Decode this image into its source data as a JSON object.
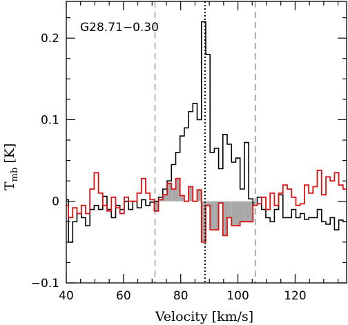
{
  "chart_data": {
    "type": "line",
    "title": "G28.71−0.30",
    "xlabel": "Velocity [km/s]",
    "ylabel_main": "T",
    "ylabel_sub": "mb",
    "ylabel_unit": "[K]",
    "xlim": [
      40,
      138
    ],
    "ylim": [
      -0.1,
      0.245
    ],
    "x_ticks": [
      40,
      60,
      80,
      100,
      120
    ],
    "x_tick_labels": [
      "40",
      "60",
      "80",
      "100",
      "120"
    ],
    "y_ticks": [
      -0.1,
      0,
      0.1,
      0.2
    ],
    "y_tick_labels": [
      "−0.1",
      "0",
      "0.1",
      "0.2"
    ],
    "vlines_dashed": [
      71,
      106
    ],
    "vline_dotted": 88.5,
    "integration_range": [
      71,
      106
    ],
    "grid": false,
    "colors": {
      "black_series": "#000000",
      "red_series": "#dd1111",
      "fill": "#a9a9a9"
    },
    "series": [
      {
        "color": "black",
        "x": [
          40.0,
          41.5,
          43.0,
          44.5,
          46.0,
          47.5,
          49.0,
          50.5,
          52.0,
          53.5,
          55.0,
          56.5,
          58.0,
          59.5,
          61.0,
          62.5,
          64.0,
          65.5,
          67.0,
          68.5,
          70.0,
          71.5,
          73.0,
          74.5,
          76.0,
          77.5,
          79.0,
          80.5,
          82.0,
          83.5,
          85.0,
          86.5,
          88.0,
          89.5,
          91.0,
          92.5,
          94.0,
          95.5,
          97.0,
          98.5,
          100.0,
          101.5,
          103.0,
          104.5,
          106.0,
          107.5,
          109.0,
          110.5,
          112.0,
          113.5,
          115.0,
          116.5,
          118.0,
          119.5,
          121.0,
          122.5,
          124.0,
          125.5,
          127.0,
          128.5,
          130.0,
          131.5,
          133.0,
          134.5,
          136.0,
          137.5
        ],
        "values": [
          0.002,
          -0.05,
          -0.025,
          -0.015,
          -0.02,
          -0.03,
          -0.01,
          -0.005,
          -0.01,
          0.006,
          -0.01,
          -0.02,
          -0.005,
          -0.01,
          0.0,
          -0.01,
          0.0,
          -0.008,
          0.002,
          -0.005,
          -0.001,
          0.0,
          0.005,
          0.015,
          0.025,
          0.045,
          0.06,
          0.08,
          0.09,
          0.11,
          0.12,
          0.1,
          0.22,
          0.18,
          0.06,
          0.065,
          0.04,
          0.082,
          0.07,
          0.048,
          0.053,
          0.015,
          0.072,
          0.003,
          -0.005,
          0.005,
          -0.01,
          -0.02,
          -0.025,
          -0.01,
          0.008,
          -0.02,
          -0.02,
          -0.01,
          -0.02,
          -0.015,
          -0.022,
          -0.02,
          -0.02,
          -0.01,
          -0.025,
          -0.028,
          -0.02,
          -0.035,
          -0.023,
          -0.025
        ]
      },
      {
        "color": "red",
        "x": [
          40.0,
          41.5,
          43.0,
          44.5,
          46.0,
          47.5,
          49.0,
          50.5,
          52.0,
          53.5,
          55.0,
          56.5,
          58.0,
          59.5,
          61.0,
          62.5,
          64.0,
          65.5,
          67.0,
          68.5,
          70.0,
          71.5,
          73.0,
          74.5,
          76.0,
          77.5,
          79.0,
          80.5,
          82.0,
          83.5,
          85.0,
          86.5,
          88.0,
          89.5,
          91.0,
          92.5,
          94.0,
          95.5,
          97.0,
          98.5,
          100.0,
          101.5,
          103.0,
          104.5,
          106.0,
          107.5,
          109.0,
          110.5,
          112.0,
          113.5,
          115.0,
          116.5,
          118.0,
          119.5,
          121.0,
          122.5,
          124.0,
          125.5,
          127.0,
          128.5,
          130.0,
          131.5,
          133.0,
          134.5,
          136.0,
          137.5
        ],
        "values": [
          -0.005,
          -0.02,
          -0.008,
          -0.015,
          -0.005,
          -0.015,
          0.015,
          0.035,
          0.01,
          -0.005,
          -0.012,
          0.005,
          -0.008,
          -0.015,
          0.005,
          0.0,
          0.0,
          0.01,
          0.028,
          0.01,
          0.002,
          -0.012,
          0.002,
          0.008,
          0.022,
          0.015,
          0.028,
          0.007,
          0.0,
          0.018,
          0.0,
          0.014,
          -0.05,
          -0.005,
          -0.035,
          -0.035,
          -0.002,
          -0.042,
          -0.02,
          -0.03,
          -0.03,
          -0.025,
          -0.025,
          -0.025,
          -0.005,
          -0.003,
          0.005,
          -0.01,
          0.01,
          -0.005,
          0.01,
          0.02,
          0.015,
          0.005,
          -0.005,
          -0.003,
          0.02,
          0.01,
          0.018,
          0.038,
          0.008,
          0.03,
          0.025,
          0.035,
          0.02,
          0.015
        ]
      }
    ]
  }
}
